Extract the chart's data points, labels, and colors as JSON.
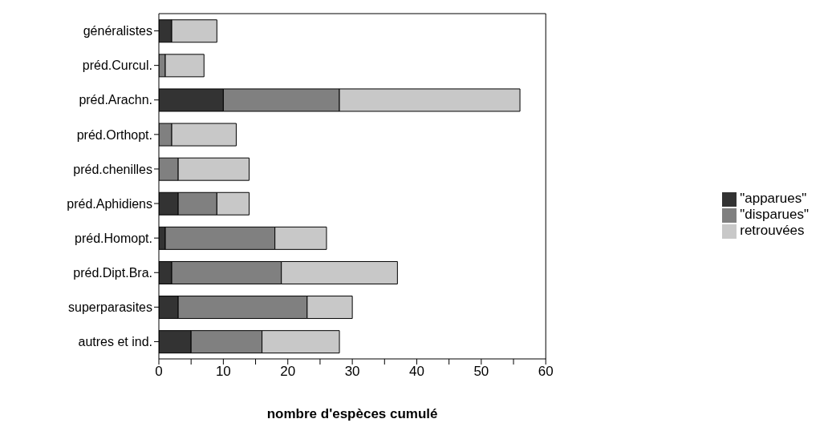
{
  "chart_data": {
    "type": "bar",
    "orientation": "horizontal",
    "stacked": true,
    "xlabel": "nombre d'espèces cumulé",
    "categories": [
      "généralistes",
      "préd.Curcul.",
      "préd.Arachn.",
      "préd.Orthopt.",
      "préd.chenilles",
      "préd.Aphidiens",
      "préd.Homopt.",
      "préd.Dipt.Bra.",
      "superparasites",
      "autres et ind."
    ],
    "series": [
      {
        "name": "\"apparues\"",
        "color": "#333333",
        "values": [
          2,
          0,
          10,
          0,
          0,
          3,
          1,
          2,
          3,
          5
        ]
      },
      {
        "name": "\"disparues\"",
        "color": "#808080",
        "values": [
          0,
          1,
          18,
          2,
          3,
          6,
          17,
          17,
          20,
          11
        ]
      },
      {
        "name": "retrouvées",
        "color": "#c8c8c8",
        "values": [
          7,
          6,
          28,
          10,
          11,
          5,
          8,
          18,
          7,
          12
        ]
      }
    ],
    "xlim": [
      0,
      60
    ],
    "xticks": [
      0,
      {
        "value": 5,
        "label": null
      },
      10,
      {
        "value": 15,
        "label": null
      },
      20,
      {
        "value": 25,
        "label": null
      },
      30,
      {
        "value": 35,
        "label": null
      },
      40,
      {
        "value": 45,
        "label": null
      },
      50,
      {
        "value": 55,
        "label": null
      },
      60
    ],
    "grid": false,
    "legend": "right"
  }
}
